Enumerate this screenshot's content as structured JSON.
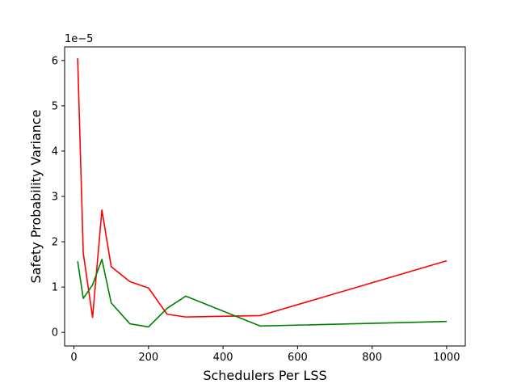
{
  "chart_data": {
    "type": "line",
    "xlabel": "Schedulers Per LSS",
    "ylabel": "Safety Probability Variance",
    "y_offset_label": "1e−5",
    "xlim": [
      -25,
      1050
    ],
    "ylim": [
      -3e-06,
      6.3e-05
    ],
    "x_ticks": [
      0,
      200,
      400,
      600,
      800,
      1000
    ],
    "x_tick_labels": [
      "0",
      "200",
      "400",
      "600",
      "800",
      "1000"
    ],
    "y_ticks": [
      0,
      1e-05,
      2e-05,
      3e-05,
      4e-05,
      5e-05,
      6e-05
    ],
    "y_tick_labels": [
      "0",
      "1",
      "2",
      "3",
      "4",
      "5",
      "6"
    ],
    "grid": false,
    "series": [
      {
        "color": "#ff0000",
        "points": [
          [
            10,
            6.05e-05
          ],
          [
            25,
            1.75e-05
          ],
          [
            50,
            3.3e-06
          ],
          [
            75,
            2.7e-05
          ],
          [
            100,
            1.45e-05
          ],
          [
            150,
            1.12e-05
          ],
          [
            200,
            9.8e-06
          ],
          [
            250,
            4e-06
          ],
          [
            300,
            3.4e-06
          ],
          [
            500,
            3.7e-06
          ],
          [
            1000,
            1.58e-05
          ]
        ]
      },
      {
        "color": "#008000",
        "points": [
          [
            10,
            1.57e-05
          ],
          [
            25,
            7.5e-06
          ],
          [
            50,
            1.05e-05
          ],
          [
            75,
            1.61e-05
          ],
          [
            100,
            6.5e-06
          ],
          [
            150,
            1.9e-06
          ],
          [
            200,
            1.2e-06
          ],
          [
            250,
            5.3e-06
          ],
          [
            300,
            8e-06
          ],
          [
            500,
            1.4e-06
          ],
          [
            1000,
            2.4e-06
          ]
        ]
      }
    ]
  }
}
